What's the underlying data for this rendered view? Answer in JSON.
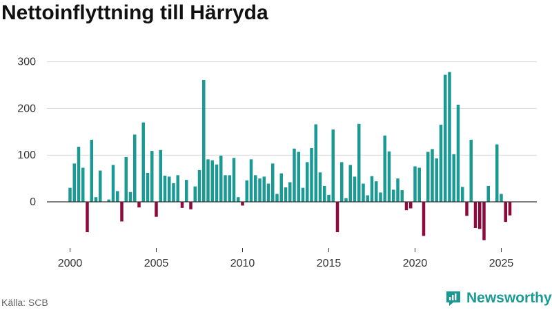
{
  "chart_data": {
    "type": "bar",
    "title": "Nettoinflyttning till Härryda",
    "xlabel": "",
    "ylabel": "",
    "ylim": [
      -85,
      330
    ],
    "xlim": [
      1999.3,
      2026.5
    ],
    "yticks": [
      0,
      100,
      200,
      300
    ],
    "xticks": [
      2000,
      2005,
      2010,
      2015,
      2020,
      2025
    ],
    "grid": true,
    "colors": {
      "positive": "#1a9a93",
      "negative": "#8e0a3c"
    },
    "x": [
      2000.0,
      2000.25,
      2000.5,
      2000.75,
      2001.0,
      2001.25,
      2001.5,
      2001.75,
      2002.0,
      2002.25,
      2002.5,
      2002.75,
      2003.0,
      2003.25,
      2003.5,
      2003.75,
      2004.0,
      2004.25,
      2004.5,
      2004.75,
      2005.0,
      2005.25,
      2005.5,
      2005.75,
      2006.0,
      2006.25,
      2006.5,
      2006.75,
      2007.0,
      2007.25,
      2007.5,
      2007.75,
      2008.0,
      2008.25,
      2008.5,
      2008.75,
      2009.0,
      2009.25,
      2009.5,
      2009.75,
      2010.0,
      2010.25,
      2010.5,
      2010.75,
      2011.0,
      2011.25,
      2011.5,
      2011.75,
      2012.0,
      2012.25,
      2012.5,
      2012.75,
      2013.0,
      2013.25,
      2013.5,
      2013.75,
      2014.0,
      2014.25,
      2014.5,
      2014.75,
      2015.0,
      2015.25,
      2015.5,
      2015.75,
      2016.0,
      2016.25,
      2016.5,
      2016.75,
      2017.0,
      2017.25,
      2017.5,
      2017.75,
      2018.0,
      2018.25,
      2018.5,
      2018.75,
      2019.0,
      2019.25,
      2019.5,
      2019.75,
      2020.0,
      2020.25,
      2020.5,
      2020.75,
      2021.0,
      2021.25,
      2021.5,
      2021.75,
      2022.0,
      2022.25,
      2022.5,
      2022.75,
      2023.0,
      2023.25,
      2023.5,
      2023.75,
      2024.0,
      2024.25,
      2024.5,
      2024.75,
      2025.0,
      2025.25,
      2025.5
    ],
    "values": [
      30,
      82,
      118,
      73,
      -65,
      133,
      10,
      67,
      0,
      5,
      79,
      23,
      -42,
      96,
      21,
      144,
      -12,
      170,
      62,
      109,
      -32,
      111,
      56,
      54,
      40,
      57,
      -13,
      47,
      -16,
      33,
      68,
      261,
      91,
      89,
      80,
      99,
      57,
      57,
      94,
      10,
      -8,
      46,
      91,
      57,
      50,
      54,
      39,
      82,
      17,
      61,
      31,
      42,
      114,
      107,
      30,
      85,
      115,
      166,
      63,
      34,
      15,
      155,
      -65,
      85,
      8,
      79,
      54,
      167,
      39,
      14,
      55,
      44,
      20,
      142,
      108,
      26,
      50,
      25,
      -18,
      -14,
      76,
      73,
      -73,
      107,
      113,
      93,
      165,
      272,
      278,
      102,
      208,
      32,
      -30,
      133,
      -56,
      -58,
      -82,
      34,
      0,
      123,
      17,
      -43,
      -29
    ]
  },
  "source_label": "Källa: SCB",
  "brand": {
    "name": "Newsworthy",
    "icon": "newsworthy-logo-icon"
  }
}
